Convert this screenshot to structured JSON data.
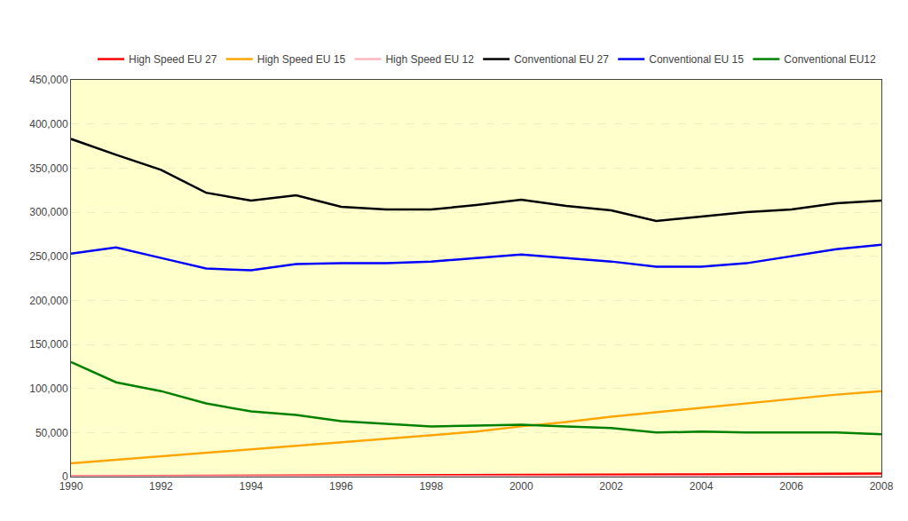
{
  "chart_data": {
    "type": "line",
    "x": [
      1990,
      1991,
      1992,
      1993,
      1994,
      1995,
      1996,
      1997,
      1998,
      1999,
      2000,
      2001,
      2002,
      2003,
      2004,
      2005,
      2006,
      2007,
      2008
    ],
    "series": [
      {
        "name": "High Speed EU 27",
        "color": "#FF0000",
        "values": [
          500,
          600,
          700,
          800,
          900,
          1000,
          1100,
          1200,
          1400,
          1600,
          1800,
          2000,
          2200,
          2400,
          2600,
          2800,
          3000,
          3200,
          3500
        ]
      },
      {
        "name": "High Speed EU 15",
        "color": "#FFA500",
        "values": [
          15000,
          19000,
          23000,
          27000,
          31000,
          35000,
          39000,
          43000,
          47000,
          51000,
          57000,
          62000,
          68000,
          73000,
          78000,
          83000,
          88000,
          93000,
          97000
        ]
      },
      {
        "name": "High Speed EU 12",
        "color": "#FFB6C1",
        "values": [
          200,
          200,
          200,
          200,
          200,
          200,
          200,
          200,
          200,
          200,
          200,
          200,
          200,
          200,
          200,
          200,
          200,
          200,
          200
        ]
      },
      {
        "name": "Conventional EU 27",
        "color": "#000000",
        "values": [
          383000,
          365000,
          348000,
          322000,
          313000,
          319000,
          306000,
          303000,
          303000,
          308000,
          314000,
          307000,
          302000,
          290000,
          295000,
          300000,
          303000,
          310000,
          313000
        ]
      },
      {
        "name": "Conventional EU 15",
        "color": "#0000FF",
        "values": [
          253000,
          260000,
          248000,
          236000,
          234000,
          241000,
          242000,
          242000,
          244000,
          248000,
          252000,
          248000,
          244000,
          238000,
          238000,
          242000,
          250000,
          258000,
          263000
        ]
      },
      {
        "name": "Conventional EU12",
        "color": "#008000",
        "values": [
          130000,
          107000,
          97000,
          83000,
          74000,
          70000,
          63000,
          60000,
          57000,
          58000,
          59000,
          57000,
          55000,
          50000,
          51000,
          50000,
          50000,
          50000,
          48000
        ]
      }
    ],
    "xlim": [
      1990,
      2008
    ],
    "xticks": [
      1990,
      1992,
      1994,
      1996,
      1998,
      2000,
      2002,
      2004,
      2006,
      2008
    ],
    "ylim": [
      0,
      450000
    ],
    "yticks": [
      0,
      {
        "value": 50000,
        "label": "50,000"
      },
      {
        "value": 100000,
        "label": "100,000"
      },
      {
        "value": 150000,
        "label": "150,000"
      },
      {
        "value": 200000,
        "label": "200,000"
      },
      {
        "value": 250000,
        "label": "250,000"
      },
      {
        "value": 300000,
        "label": "300,000"
      },
      {
        "value": 350000,
        "label": "350,000"
      },
      {
        "value": 400000,
        "label": "400,000"
      },
      {
        "value": 450000,
        "label": "450,000"
      }
    ],
    "grid": true,
    "legend": "upper right"
  }
}
